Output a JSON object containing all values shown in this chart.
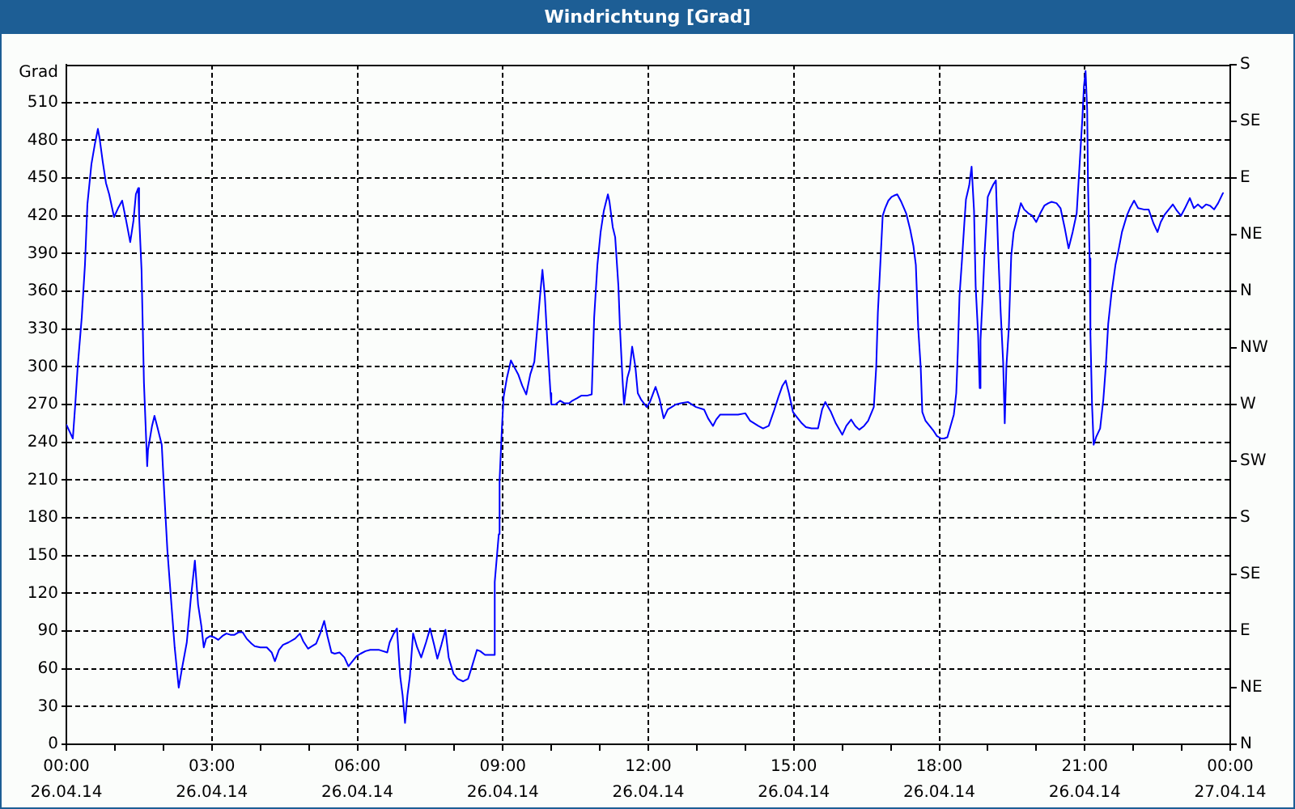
{
  "chart_data": {
    "type": "line",
    "title": "Windrichtung [Grad]",
    "ylabel": "Grad",
    "xlim": [
      "--04-26T00:00",
      "--04-27T00:00"
    ],
    "xticks": [
      {
        "value": "--04-26T00:00",
        "label": "00:00\n26.04.14"
      },
      {
        "value": "--04-26T01:00",
        "label": null
      },
      {
        "value": "--04-26T02:00",
        "label": null
      },
      {
        "value": "--04-26T03:00",
        "label": "03:00\n26.04.14"
      },
      {
        "value": "--04-26T04:00",
        "label": null
      },
      {
        "value": "--04-26T05:00",
        "label": null
      },
      {
        "value": "--04-26T06:00",
        "label": "06:00\n26.04.14"
      },
      {
        "value": "--04-26T07:00",
        "label": null
      },
      {
        "value": "--04-26T08:00",
        "label": null
      },
      {
        "value": "--04-26T09:00",
        "label": "09:00\n26.04.14"
      },
      {
        "value": "--04-26T10:00",
        "label": null
      },
      {
        "value": "--04-26T11:00",
        "label": null
      },
      {
        "value": "--04-26T12:00",
        "label": "12:00\n26.04.14"
      },
      {
        "value": "--04-26T13:00",
        "label": null
      },
      {
        "value": "--04-26T14:00",
        "label": null
      },
      {
        "value": "--04-26T15:00",
        "label": "15:00\n26.04.14"
      },
      {
        "value": "--04-26T16:00",
        "label": null
      },
      {
        "value": "--04-26T17:00",
        "label": null
      },
      {
        "value": "--04-26T18:00",
        "label": "18:00\n26.04.14"
      },
      {
        "value": "--04-26T19:00",
        "label": null
      },
      {
        "value": "--04-26T20:00",
        "label": null
      },
      {
        "value": "--04-26T21:00",
        "label": "21:00\n26.04.14"
      },
      {
        "value": "--04-26T22:00",
        "label": null
      },
      {
        "value": "--04-26T23:00",
        "label": null
      },
      {
        "value": "--04-27T00:00",
        "label": "00:00\n27.04.14"
      }
    ],
    "ylim": [
      0,
      540
    ],
    "yticks": [
      0,
      30,
      60,
      90,
      120,
      150,
      180,
      210,
      240,
      270,
      300,
      330,
      360,
      390,
      420,
      450,
      480,
      510
    ],
    "y2_categories": [
      "S",
      "SE",
      "E",
      "NE",
      "N",
      "NW",
      "W",
      "SW",
      "S",
      "SE",
      "E",
      "NE",
      "N"
    ],
    "grid": true,
    "x": [
      "--04-26T00:00",
      "--04-26T00:08",
      "--04-26T00:11",
      "--04-26T00:14",
      "--04-26T00:19",
      "--04-26T00:23",
      "--04-26T00:26",
      "--04-26T00:31",
      "--04-26T00:35",
      "--04-26T00:39",
      "--04-26T00:41",
      "--04-26T00:45",
      "--04-26T00:49",
      "--04-26T00:53",
      "--04-26T00:59",
      "--04-26T01:04",
      "--04-26T01:09",
      "--04-26T01:14",
      "--04-26T01:19",
      "--04-26T01:23",
      "--04-26T01:26",
      "--04-26T01:29",
      "--04-26T01:30",
      "--04-26T01:33",
      "--04-26T01:36",
      "--04-26T01:40",
      "--04-26T01:41",
      "--04-26T01:46",
      "--04-26T01:49",
      "--04-26T01:53",
      "--04-26T01:58",
      "--04-26T02:01",
      "--04-26T02:05",
      "--04-26T02:10",
      "--04-26T02:14",
      "--04-26T02:19",
      "--04-26T02:23",
      "--04-26T02:29",
      "--04-26T02:34",
      "--04-26T02:39",
      "--04-26T02:43",
      "--04-26T02:47",
      "--04-26T02:50",
      "--04-26T02:53",
      "--04-26T02:58",
      "--04-26T03:03",
      "--04-26T03:08",
      "--04-26T03:13",
      "--04-26T03:18",
      "--04-26T03:23",
      "--04-26T03:28",
      "--04-26T03:33",
      "--04-26T03:38",
      "--04-26T03:43",
      "--04-26T03:49",
      "--04-26T03:53",
      "--04-26T04:00",
      "--04-26T04:08",
      "--04-26T04:14",
      "--04-26T04:18",
      "--04-26T04:23",
      "--04-26T04:28",
      "--04-26T04:35",
      "--04-26T04:43",
      "--04-26T04:49",
      "--04-26T04:53",
      "--04-26T04:59",
      "--04-26T05:04",
      "--04-26T05:09",
      "--04-26T05:14",
      "--04-26T05:19",
      "--04-26T05:23",
      "--04-26T05:28",
      "--04-26T05:32",
      "--04-26T05:38",
      "--04-26T05:44",
      "--04-26T05:49",
      "--04-26T05:54",
      "--04-26T05:59",
      "--04-26T06:04",
      "--04-26T06:10",
      "--04-26T06:16",
      "--04-26T06:21",
      "--04-26T06:27",
      "--04-26T06:37",
      "--04-26T06:40",
      "--04-26T06:45",
      "--04-26T06:49",
      "--04-26T06:53",
      "--04-26T06:56",
      "--04-26T06:59",
      "--04-26T07:02",
      "--04-26T07:05",
      "--04-26T07:09",
      "--04-26T07:14",
      "--04-26T07:19",
      "--04-26T07:25",
      "--04-26T07:30",
      "--04-26T07:35",
      "--04-26T07:39",
      "--04-26T07:44",
      "--04-26T07:49",
      "--04-26T07:53",
      "--04-26T07:59",
      "--04-26T08:04",
      "--04-26T08:11",
      "--04-26T08:17",
      "--04-26T08:21",
      "--04-26T08:28",
      "--04-26T08:32",
      "--04-26T08:38",
      "--04-26T08:49",
      "--04-26T08:50",
      "--04-26T08:55",
      "--04-26T08:56",
      "--04-26T08:59",
      "--04-26T09:01",
      "--04-26T09:05",
      "--04-26T09:10",
      "--04-26T09:14",
      "--04-26T09:19",
      "--04-26T09:24",
      "--04-26T09:29",
      "--04-26T09:34",
      "--04-26T09:39",
      "--04-26T09:42",
      "--04-26T09:46",
      "--04-26T09:49",
      "--04-26T09:52",
      "--04-26T09:55",
      "--04-26T09:59",
      "--04-26T10:00",
      "--04-26T10:05",
      "--04-26T10:11",
      "--04-26T10:16",
      "--04-26T10:22",
      "--04-26T10:26",
      "--04-26T10:32",
      "--04-26T10:37",
      "--04-26T10:44",
      "--04-26T10:50",
      "--04-26T10:53",
      "--04-26T10:57",
      "--04-26T11:01",
      "--04-26T11:05",
      "--04-26T11:10",
      "--04-26T11:12",
      "--04-26T11:16",
      "--04-26T11:19",
      "--04-26T11:23",
      "--04-26T11:25",
      "--04-26T11:28",
      "--04-26T11:30",
      "--04-26T11:34",
      "--04-26T11:37",
      "--04-26T11:40",
      "--04-26T11:44",
      "--04-26T11:47",
      "--04-26T11:51",
      "--04-26T11:58",
      "--04-26T12:02",
      "--04-26T12:09",
      "--04-26T12:14",
      "--04-26T12:19",
      "--04-26T12:24",
      "--04-26T12:29",
      "--04-26T12:34",
      "--04-26T12:40",
      "--04-26T12:49",
      "--04-26T12:59",
      "--04-26T13:09",
      "--04-26T13:14",
      "--04-26T13:20",
      "--04-26T13:24",
      "--04-26T13:29",
      "--04-26T13:39",
      "--04-26T13:51",
      "--04-26T14:00",
      "--04-26T14:06",
      "--04-26T14:16",
      "--04-26T14:22",
      "--04-26T14:29",
      "--04-26T14:36",
      "--04-26T14:41",
      "--04-26T14:46",
      "--04-26T14:50",
      "--04-26T14:54",
      "--04-26T14:59",
      "--04-26T15:05",
      "--04-26T15:10",
      "--04-26T15:15",
      "--04-26T15:22",
      "--04-26T15:30",
      "--04-26T15:35",
      "--04-26T15:39",
      "--04-26T15:46",
      "--04-26T15:52",
      "--04-26T16:00",
      "--04-26T16:05",
      "--04-26T16:11",
      "--04-26T16:16",
      "--04-26T16:21",
      "--04-26T16:27",
      "--04-26T16:32",
      "--04-26T16:39",
      "--04-26T16:42",
      "--04-26T16:44",
      "--04-26T16:47",
      "--04-26T16:50",
      "--04-26T16:53",
      "--04-26T16:57",
      "--04-26T17:01",
      "--04-26T17:04",
      "--04-26T17:08",
      "--04-26T17:13",
      "--04-26T17:19",
      "--04-26T17:24",
      "--04-26T17:28",
      "--04-26T17:31",
      "--04-26T17:34",
      "--04-26T17:37",
      "--04-26T17:39",
      "--04-26T17:43",
      "--04-26T17:48",
      "--04-26T17:53",
      "--04-26T17:57",
      "--04-26T18:02",
      "--04-26T18:06",
      "--04-26T18:10",
      "--04-26T18:14",
      "--04-26T18:18",
      "--04-26T18:21",
      "--04-26T18:23",
      "--04-26T18:25",
      "--04-26T18:28",
      "--04-26T18:31",
      "--04-26T18:33",
      "--04-26T18:37",
      "--04-26T18:40",
      "--04-26T18:43",
      "--04-26T18:45",
      "--04-26T18:48",
      "--04-26T18:50",
      "--04-26T18:51",
      "--04-26T18:54",
      "--04-26T18:56",
      "--04-26T19:00",
      "--04-26T19:04",
      "--04-26T19:07",
      "--04-26T19:10",
      "--04-26T19:13",
      "--04-26T19:16",
      "--04-26T19:19",
      "--04-26T19:21",
      "--04-26T19:23",
      "--04-26T19:26",
      "--04-26T19:29",
      "--04-26T19:32",
      "--04-26T19:37",
      "--04-26T19:41",
      "--04-26T19:45",
      "--04-26T19:50",
      "--04-26T19:55",
      "--04-26T20:00",
      "--04-26T20:05",
      "--04-26T20:10",
      "--04-26T20:15",
      "--04-26T20:19",
      "--04-26T20:25",
      "--04-26T20:30",
      "--04-26T20:35",
      "--04-26T20:40",
      "--04-26T20:45",
      "--04-26T20:50",
      "--04-26T20:53",
      "--04-26T20:57",
      "--04-26T20:59",
      "--04-26T21:01",
      "--04-26T21:03",
      "--04-26T21:04",
      "--04-26T21:06",
      "--04-26T21:07",
      "--04-26T21:09",
      "--04-26T21:11",
      "--04-26T21:14",
      "--04-26T21:19",
      "--04-26T21:23",
      "--04-26T21:26",
      "--04-26T21:29",
      "--04-26T21:33",
      "--04-26T21:38",
      "--04-26T21:41",
      "--04-26T21:46",
      "--04-26T21:52",
      "--04-26T21:56",
      "--04-26T22:01",
      "--04-26T22:06",
      "--04-26T22:13",
      "--04-26T22:19",
      "--04-26T22:25",
      "--04-26T22:30",
      "--04-26T22:34",
      "--04-26T22:39",
      "--04-26T22:44",
      "--04-26T22:49",
      "--04-26T22:54",
      "--04-26T22:59",
      "--04-26T23:04",
      "--04-26T23:10",
      "--04-26T23:15",
      "--04-26T23:20",
      "--04-26T23:25",
      "--04-26T23:30",
      "--04-26T23:35",
      "--04-26T23:40",
      "--04-26T23:45",
      "--04-26T23:51"
    ],
    "series": [
      {
        "color": "#0000ff",
        "values": [
          254,
          243,
          270,
          300,
          339,
          381,
          429,
          461,
          476,
          489,
          482,
          463,
          446,
          437,
          419,
          426,
          432,
          416,
          399,
          416,
          437,
          442,
          420,
          377,
          287,
          221,
          234,
          253,
          261,
          251,
          238,
          201,
          154,
          111,
          77,
          45,
          60,
          81,
          116,
          146,
          111,
          94,
          77,
          84,
          86,
          85,
          83,
          86,
          88,
          87,
          87,
          89,
          89,
          84,
          80,
          78,
          77,
          77,
          73,
          66,
          75,
          79,
          81,
          84,
          88,
          82,
          76,
          78,
          80,
          88,
          98,
          86,
          73,
          72,
          73,
          69,
          62,
          66,
          70,
          72,
          74,
          75,
          75,
          75,
          73,
          81,
          88,
          92,
          54,
          39,
          17,
          39,
          54,
          88,
          77,
          69,
          81,
          92,
          79,
          68,
          79,
          91,
          69,
          56,
          52,
          50,
          52,
          60,
          75,
          74,
          71,
          71,
          129,
          167,
          210,
          253,
          276,
          291,
          305,
          300,
          294,
          285,
          278,
          294,
          304,
          326,
          356,
          377,
          356,
          321,
          279,
          270,
          270,
          273,
          271,
          271,
          273,
          275,
          277,
          277,
          278,
          339,
          381,
          407,
          424,
          437,
          431,
          411,
          403,
          364,
          330,
          291,
          270,
          291,
          298,
          316,
          300,
          279,
          274,
          268,
          272,
          284,
          274,
          259,
          266,
          268,
          270,
          271,
          272,
          268,
          266,
          259,
          253,
          258,
          262,
          262,
          262,
          263,
          257,
          253,
          251,
          253,
          266,
          276,
          285,
          289,
          279,
          264,
          259,
          255,
          252,
          251,
          251,
          266,
          272,
          264,
          255,
          246,
          253,
          258,
          253,
          250,
          253,
          257,
          268,
          300,
          343,
          381,
          420,
          426,
          432,
          435,
          436,
          437,
          431,
          422,
          409,
          396,
          381,
          330,
          300,
          264,
          257,
          253,
          249,
          245,
          243,
          243,
          244,
          253,
          262,
          279,
          313,
          356,
          384,
          414,
          433,
          444,
          459,
          424,
          364,
          326,
          283,
          321,
          360,
          390,
          435,
          441,
          445,
          448,
          390,
          343,
          304,
          255,
          300,
          330,
          388,
          407,
          420,
          430,
          425,
          422,
          420,
          415,
          422,
          428,
          430,
          431,
          430,
          426,
          411,
          394,
          407,
          422,
          454,
          497,
          523,
          535,
          504,
          446,
          386,
          326,
          270,
          238,
          244,
          251,
          274,
          300,
          334,
          358,
          381,
          390,
          407,
          420,
          426,
          432,
          426,
          425,
          425,
          414,
          407,
          415,
          421,
          425,
          429,
          424,
          420,
          426,
          434,
          426,
          429,
          426,
          429,
          428,
          425,
          430,
          438
        ]
      }
    ]
  }
}
